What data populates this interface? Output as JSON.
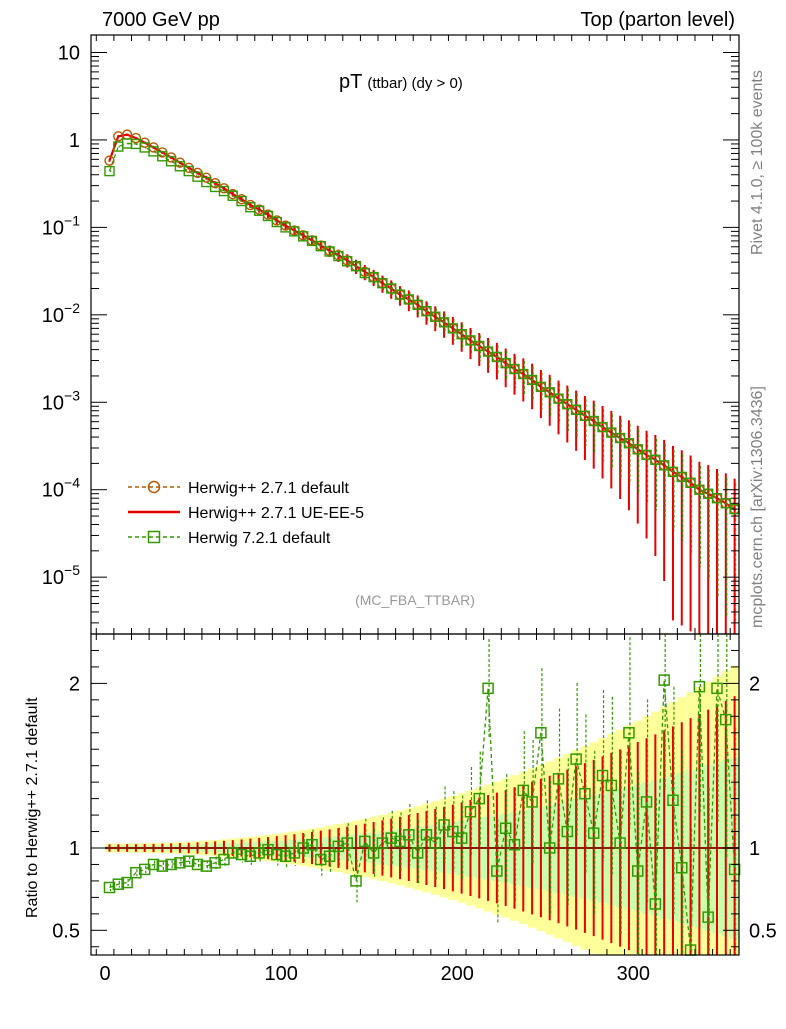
{
  "header": {
    "left": "7000 GeV pp",
    "right": "Top (parton level)"
  },
  "side": {
    "rivet": "Rivet 4.1.0, ≥ 100k events",
    "mcplots": "mcplots.cern.ch [arXiv:1306.3436]"
  },
  "colors": {
    "herwigpp_default": "#b35900",
    "herwigpp_ueee5": "#e60000",
    "herwig7": "#339900",
    "band_yellow": "#ffff99",
    "band_green": "#b3ffb3"
  },
  "chart_data": [
    {
      "type": "line",
      "panel": "main",
      "title": "pT",
      "title_sub": "(ttbar) (dy > 0)",
      "watermark": "(MC_FBA_TTBAR)",
      "xlim": [
        -8,
        360
      ],
      "ylim_log10": [
        -5.65,
        1.2
      ],
      "yscale": "log",
      "y_ticks": [
        {
          "label": "10",
          "exp": "",
          "value": 10
        },
        {
          "label": "1",
          "exp": "",
          "value": 1
        },
        {
          "label": "10",
          "exp": "−1",
          "value": 0.1
        },
        {
          "label": "10",
          "exp": "−2",
          "value": 0.01
        },
        {
          "label": "10",
          "exp": "−3",
          "value": 0.001
        },
        {
          "label": "10",
          "exp": "−4",
          "value": 0.0001
        },
        {
          "label": "10",
          "exp": "−5",
          "value": 1e-05
        }
      ],
      "legend_position": "lower-left",
      "series": [
        {
          "name": "Herwig++ 2.7.1 default",
          "style": "dashed-circle",
          "x": [
            2.5,
            7.5,
            12.5,
            17.5,
            22.5,
            27.5,
            32.5,
            37.5,
            42.5,
            47.5,
            52.5,
            57.5,
            62.5,
            67.5,
            72.5,
            77.5,
            82.5,
            87.5,
            92.5,
            97.5,
            102.5,
            107.5,
            112.5,
            117.5,
            122.5,
            127.5,
            132.5,
            137.5,
            142.5,
            147.5,
            152.5,
            157.5,
            162.5,
            167.5,
            172.5,
            177.5,
            182.5,
            187.5,
            192.5,
            197.5,
            202.5,
            207.5,
            212.5,
            217.5,
            222.5,
            227.5,
            232.5,
            237.5,
            242.5,
            247.5,
            252.5,
            257.5,
            262.5,
            267.5,
            272.5,
            277.5,
            282.5,
            287.5,
            292.5,
            297.5,
            302.5,
            307.5,
            312.5,
            317.5,
            322.5,
            327.5,
            332.5,
            337.5,
            342.5,
            347.5,
            352.5,
            357.5
          ],
          "y": [
            0.58,
            1.1,
            1.15,
            1.05,
            0.93,
            0.82,
            0.72,
            0.63,
            0.55,
            0.48,
            0.42,
            0.37,
            0.32,
            0.28,
            0.24,
            0.21,
            0.18,
            0.16,
            0.14,
            0.12,
            0.105,
            0.092,
            0.081,
            0.071,
            0.062,
            0.054,
            0.048,
            0.042,
            0.036,
            0.031,
            0.027,
            0.023,
            0.02,
            0.017,
            0.015,
            0.013,
            0.011,
            0.0095,
            0.0082,
            0.007,
            0.006,
            0.0051,
            0.0044,
            0.0038,
            0.0033,
            0.0028,
            0.0024,
            0.0021,
            0.0018,
            0.0015,
            0.0013,
            0.0011,
            0.00095,
            0.00082,
            0.0007,
            0.00061,
            0.00052,
            0.00045,
            0.00039,
            0.00034,
            0.00029,
            0.00025,
            0.00022,
            0.00019,
            0.00016,
            0.00014,
            0.00012,
            0.0001,
            9e-05,
            8e-05,
            7e-05,
            6e-05
          ]
        },
        {
          "name": "Herwig++ 2.7.1 UE-EE-5",
          "style": "solid-errorbar",
          "x": [
            2.5,
            7.5,
            12.5,
            17.5,
            22.5,
            27.5,
            32.5,
            37.5,
            42.5,
            47.5,
            52.5,
            57.5,
            62.5,
            67.5,
            72.5,
            77.5,
            82.5,
            87.5,
            92.5,
            97.5,
            102.5,
            107.5,
            112.5,
            117.5,
            122.5,
            127.5,
            132.5,
            137.5,
            142.5,
            147.5,
            152.5,
            157.5,
            162.5,
            167.5,
            172.5,
            177.5,
            182.5,
            187.5,
            192.5,
            197.5,
            202.5,
            207.5,
            212.5,
            217.5,
            222.5,
            227.5,
            232.5,
            237.5,
            242.5,
            247.5,
            252.5,
            257.5,
            262.5,
            267.5,
            272.5,
            277.5,
            282.5,
            287.5,
            292.5,
            297.5,
            302.5,
            307.5,
            312.5,
            317.5,
            322.5,
            327.5,
            332.5,
            337.5,
            342.5,
            347.5,
            352.5,
            357.5
          ],
          "y": [
            0.58,
            1.1,
            1.15,
            1.05,
            0.93,
            0.82,
            0.72,
            0.63,
            0.55,
            0.48,
            0.42,
            0.37,
            0.32,
            0.28,
            0.24,
            0.21,
            0.18,
            0.16,
            0.14,
            0.12,
            0.105,
            0.092,
            0.081,
            0.071,
            0.062,
            0.054,
            0.048,
            0.042,
            0.036,
            0.031,
            0.027,
            0.023,
            0.02,
            0.017,
            0.015,
            0.013,
            0.011,
            0.0095,
            0.0082,
            0.007,
            0.006,
            0.0051,
            0.0044,
            0.0038,
            0.0033,
            0.0028,
            0.0024,
            0.0021,
            0.0018,
            0.0015,
            0.0013,
            0.0011,
            0.00095,
            0.00082,
            0.0007,
            0.00061,
            0.00052,
            0.00045,
            0.00039,
            0.00034,
            0.00029,
            0.00025,
            0.00022,
            0.00019,
            0.00016,
            0.00014,
            0.00012,
            0.0001,
            9e-05,
            8e-05,
            7e-05,
            6e-05
          ]
        },
        {
          "name": "Herwig 7.2.1 default",
          "style": "dashed-square",
          "x": [
            2.5,
            7.5,
            12.5,
            17.5,
            22.5,
            27.5,
            32.5,
            37.5,
            42.5,
            47.5,
            52.5,
            57.5,
            62.5,
            67.5,
            72.5,
            77.5,
            82.5,
            87.5,
            92.5,
            97.5,
            102.5,
            107.5,
            112.5,
            117.5,
            122.5,
            127.5,
            132.5,
            137.5,
            142.5,
            147.5,
            152.5,
            157.5,
            162.5,
            167.5,
            172.5,
            177.5,
            182.5,
            187.5,
            192.5,
            197.5,
            202.5,
            207.5,
            212.5,
            217.5,
            222.5,
            227.5,
            232.5,
            237.5,
            242.5,
            247.5,
            252.5,
            257.5,
            262.5,
            267.5,
            272.5,
            277.5,
            282.5,
            287.5,
            292.5,
            297.5,
            302.5,
            307.5,
            312.5,
            317.5,
            322.5,
            327.5,
            332.5,
            337.5,
            342.5,
            347.5,
            352.5,
            357.5
          ],
          "y": [
            0.44,
            0.84,
            0.91,
            0.9,
            0.82,
            0.74,
            0.65,
            0.57,
            0.5,
            0.44,
            0.38,
            0.33,
            0.29,
            0.26,
            0.23,
            0.2,
            0.17,
            0.155,
            0.135,
            0.115,
            0.1,
            0.09,
            0.079,
            0.07,
            0.061,
            0.053,
            0.047,
            0.041,
            0.036,
            0.03,
            0.027,
            0.023,
            0.02,
            0.017,
            0.015,
            0.013,
            0.011,
            0.0095,
            0.0082,
            0.007,
            0.006,
            0.0051,
            0.0044,
            0.0038,
            0.0033,
            0.0028,
            0.0024,
            0.0021,
            0.0018,
            0.0015,
            0.0013,
            0.0011,
            0.00095,
            0.00082,
            0.0007,
            0.00061,
            0.00052,
            0.00045,
            0.00039,
            0.00034,
            0.00029,
            0.00025,
            0.00022,
            0.00019,
            0.00016,
            0.00014,
            0.00012,
            0.0001,
            9e-05,
            8e-05,
            7e-05,
            6e-05
          ]
        }
      ],
      "x_ticks": [
        "0",
        "100",
        "200",
        "300"
      ]
    },
    {
      "type": "line",
      "panel": "ratio",
      "ylabel": "Ratio to Herwig++ 2.7.1 default",
      "xlim": [
        -8,
        360
      ],
      "ylim": [
        0.35,
        2.3
      ],
      "y_ticks": [
        {
          "label": "0.5",
          "value": 0.5
        },
        {
          "label": "1",
          "value": 1
        },
        {
          "label": "2",
          "value": 2
        }
      ],
      "x_ticks": [
        "0",
        "100",
        "200",
        "300"
      ],
      "reference": 1,
      "series": [
        {
          "name": "Herwig 7.2.1 default",
          "x": [
            2.5,
            7.5,
            12.5,
            17.5,
            22.5,
            27.5,
            32.5,
            37.5,
            42.5,
            47.5,
            52.5,
            57.5,
            62.5,
            67.5,
            72.5,
            77.5,
            82.5,
            87.5,
            92.5,
            97.5,
            102.5,
            107.5,
            112.5,
            117.5,
            122.5,
            127.5,
            132.5,
            137.5,
            142.5,
            147.5,
            152.5,
            157.5,
            162.5,
            167.5,
            172.5,
            177.5,
            182.5,
            187.5,
            192.5,
            197.5,
            202.5,
            207.5,
            212.5,
            217.5,
            222.5,
            227.5,
            232.5,
            237.5,
            242.5,
            247.5,
            252.5,
            257.5,
            262.5,
            267.5,
            272.5,
            277.5,
            282.5,
            287.5,
            292.5,
            297.5,
            302.5,
            307.5,
            312.5,
            317.5,
            322.5,
            327.5,
            332.5,
            337.5,
            342.5,
            347.5,
            352.5,
            357.5
          ],
          "y": [
            0.76,
            0.78,
            0.79,
            0.85,
            0.87,
            0.9,
            0.89,
            0.9,
            0.91,
            0.92,
            0.9,
            0.89,
            0.91,
            0.93,
            0.97,
            0.96,
            0.95,
            0.97,
            0.99,
            0.96,
            0.95,
            0.97,
            1.0,
            1.02,
            0.93,
            0.95,
            1.01,
            1.03,
            0.8,
            1.04,
            0.97,
            1.03,
            1.06,
            1.04,
            1.08,
            0.97,
            1.08,
            1.03,
            1.14,
            1.1,
            1.06,
            1.22,
            1.3,
            1.97,
            0.86,
            1.12,
            1.02,
            1.35,
            1.28,
            1.7,
            1.0,
            1.42,
            1.1,
            1.54,
            1.33,
            1.09,
            1.44,
            1.38,
            1.03,
            1.7,
            0.86,
            1.28,
            0.66,
            2.02,
            1.29,
            0.88,
            0.38,
            1.98,
            0.58,
            1.97,
            1.78,
            0.87
          ]
        }
      ]
    }
  ]
}
